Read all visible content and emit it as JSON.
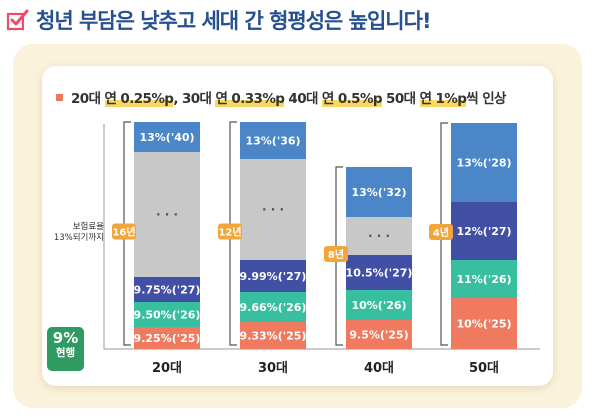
{
  "headline": "청년 부담은 낮추고 세대 간 형평성은 높입니다!",
  "subtitle": {
    "segments": [
      {
        "text": "20대 ",
        "hl": false
      },
      {
        "text": "연 0.25%p",
        "hl": true
      },
      {
        "text": ", 30대 ",
        "hl": false
      },
      {
        "text": "연 0.33%p",
        "hl": true
      },
      {
        "text": " 40대 ",
        "hl": false
      },
      {
        "text": "연 0.5%p",
        "hl": true
      },
      {
        "text": " 50대 ",
        "hl": false
      },
      {
        "text": "연 1%p",
        "hl": true
      },
      {
        "text": "씩 인상",
        "hl": false
      }
    ]
  },
  "side_label": [
    "보험료율",
    "13%되기까지"
  ],
  "current_badge": {
    "value": "9%",
    "label": "현행"
  },
  "chart_data": {
    "type": "bar",
    "categories": [
      "20대",
      "30대",
      "40대",
      "50대"
    ],
    "ylim": [
      9,
      13
    ],
    "durations": [
      "16년",
      "12년",
      "8년",
      "4년"
    ],
    "columns": [
      {
        "category": "20대",
        "duration": "16년",
        "segments": [
          {
            "value": 9.25,
            "text": "9.25%('25)",
            "color": "#f07a5f"
          },
          {
            "value": 9.5,
            "text": "9.50%('26)",
            "color": "#37bfa0"
          },
          {
            "value": 9.75,
            "text": "9.75%('27)",
            "color": "#4150a4"
          },
          {
            "value": null,
            "text": "· · ·",
            "color": "#c8c8c8"
          },
          {
            "value": 13,
            "text": "13%('40)",
            "color": "#4a86c8"
          }
        ]
      },
      {
        "category": "30대",
        "duration": "12년",
        "segments": [
          {
            "value": 9.33,
            "text": "9.33%('25)",
            "color": "#f07a5f"
          },
          {
            "value": 9.66,
            "text": "9.66%('26)",
            "color": "#37bfa0"
          },
          {
            "value": 9.99,
            "text": "9.99%('27)",
            "color": "#4150a4"
          },
          {
            "value": null,
            "text": "· · ·",
            "color": "#c8c8c8"
          },
          {
            "value": 13,
            "text": "13%('36)",
            "color": "#4a86c8"
          }
        ]
      },
      {
        "category": "40대",
        "duration": "8년",
        "segments": [
          {
            "value": 9.5,
            "text": "9.5%('25)",
            "color": "#f07a5f"
          },
          {
            "value": 10,
            "text": "10%('26)",
            "color": "#37bfa0"
          },
          {
            "value": 10.5,
            "text": "10.5%('27)",
            "color": "#4150a4"
          },
          {
            "value": null,
            "text": "· · ·",
            "color": "#c8c8c8"
          },
          {
            "value": 13,
            "text": "13%('32)",
            "color": "#4a86c8"
          }
        ]
      },
      {
        "category": "50대",
        "duration": "4년",
        "segments": [
          {
            "value": 10,
            "text": "10%('25)",
            "color": "#f07a5f"
          },
          {
            "value": 11,
            "text": "11%('26)",
            "color": "#37bfa0"
          },
          {
            "value": 12,
            "text": "12%('27)",
            "color": "#4150a4"
          },
          {
            "value": 13,
            "text": "13%('28)",
            "color": "#4a86c8"
          }
        ]
      }
    ],
    "colors": {
      "bracket": "#555555",
      "duration_badge": "#f2a63a",
      "axis": "#9a9a9a"
    }
  }
}
